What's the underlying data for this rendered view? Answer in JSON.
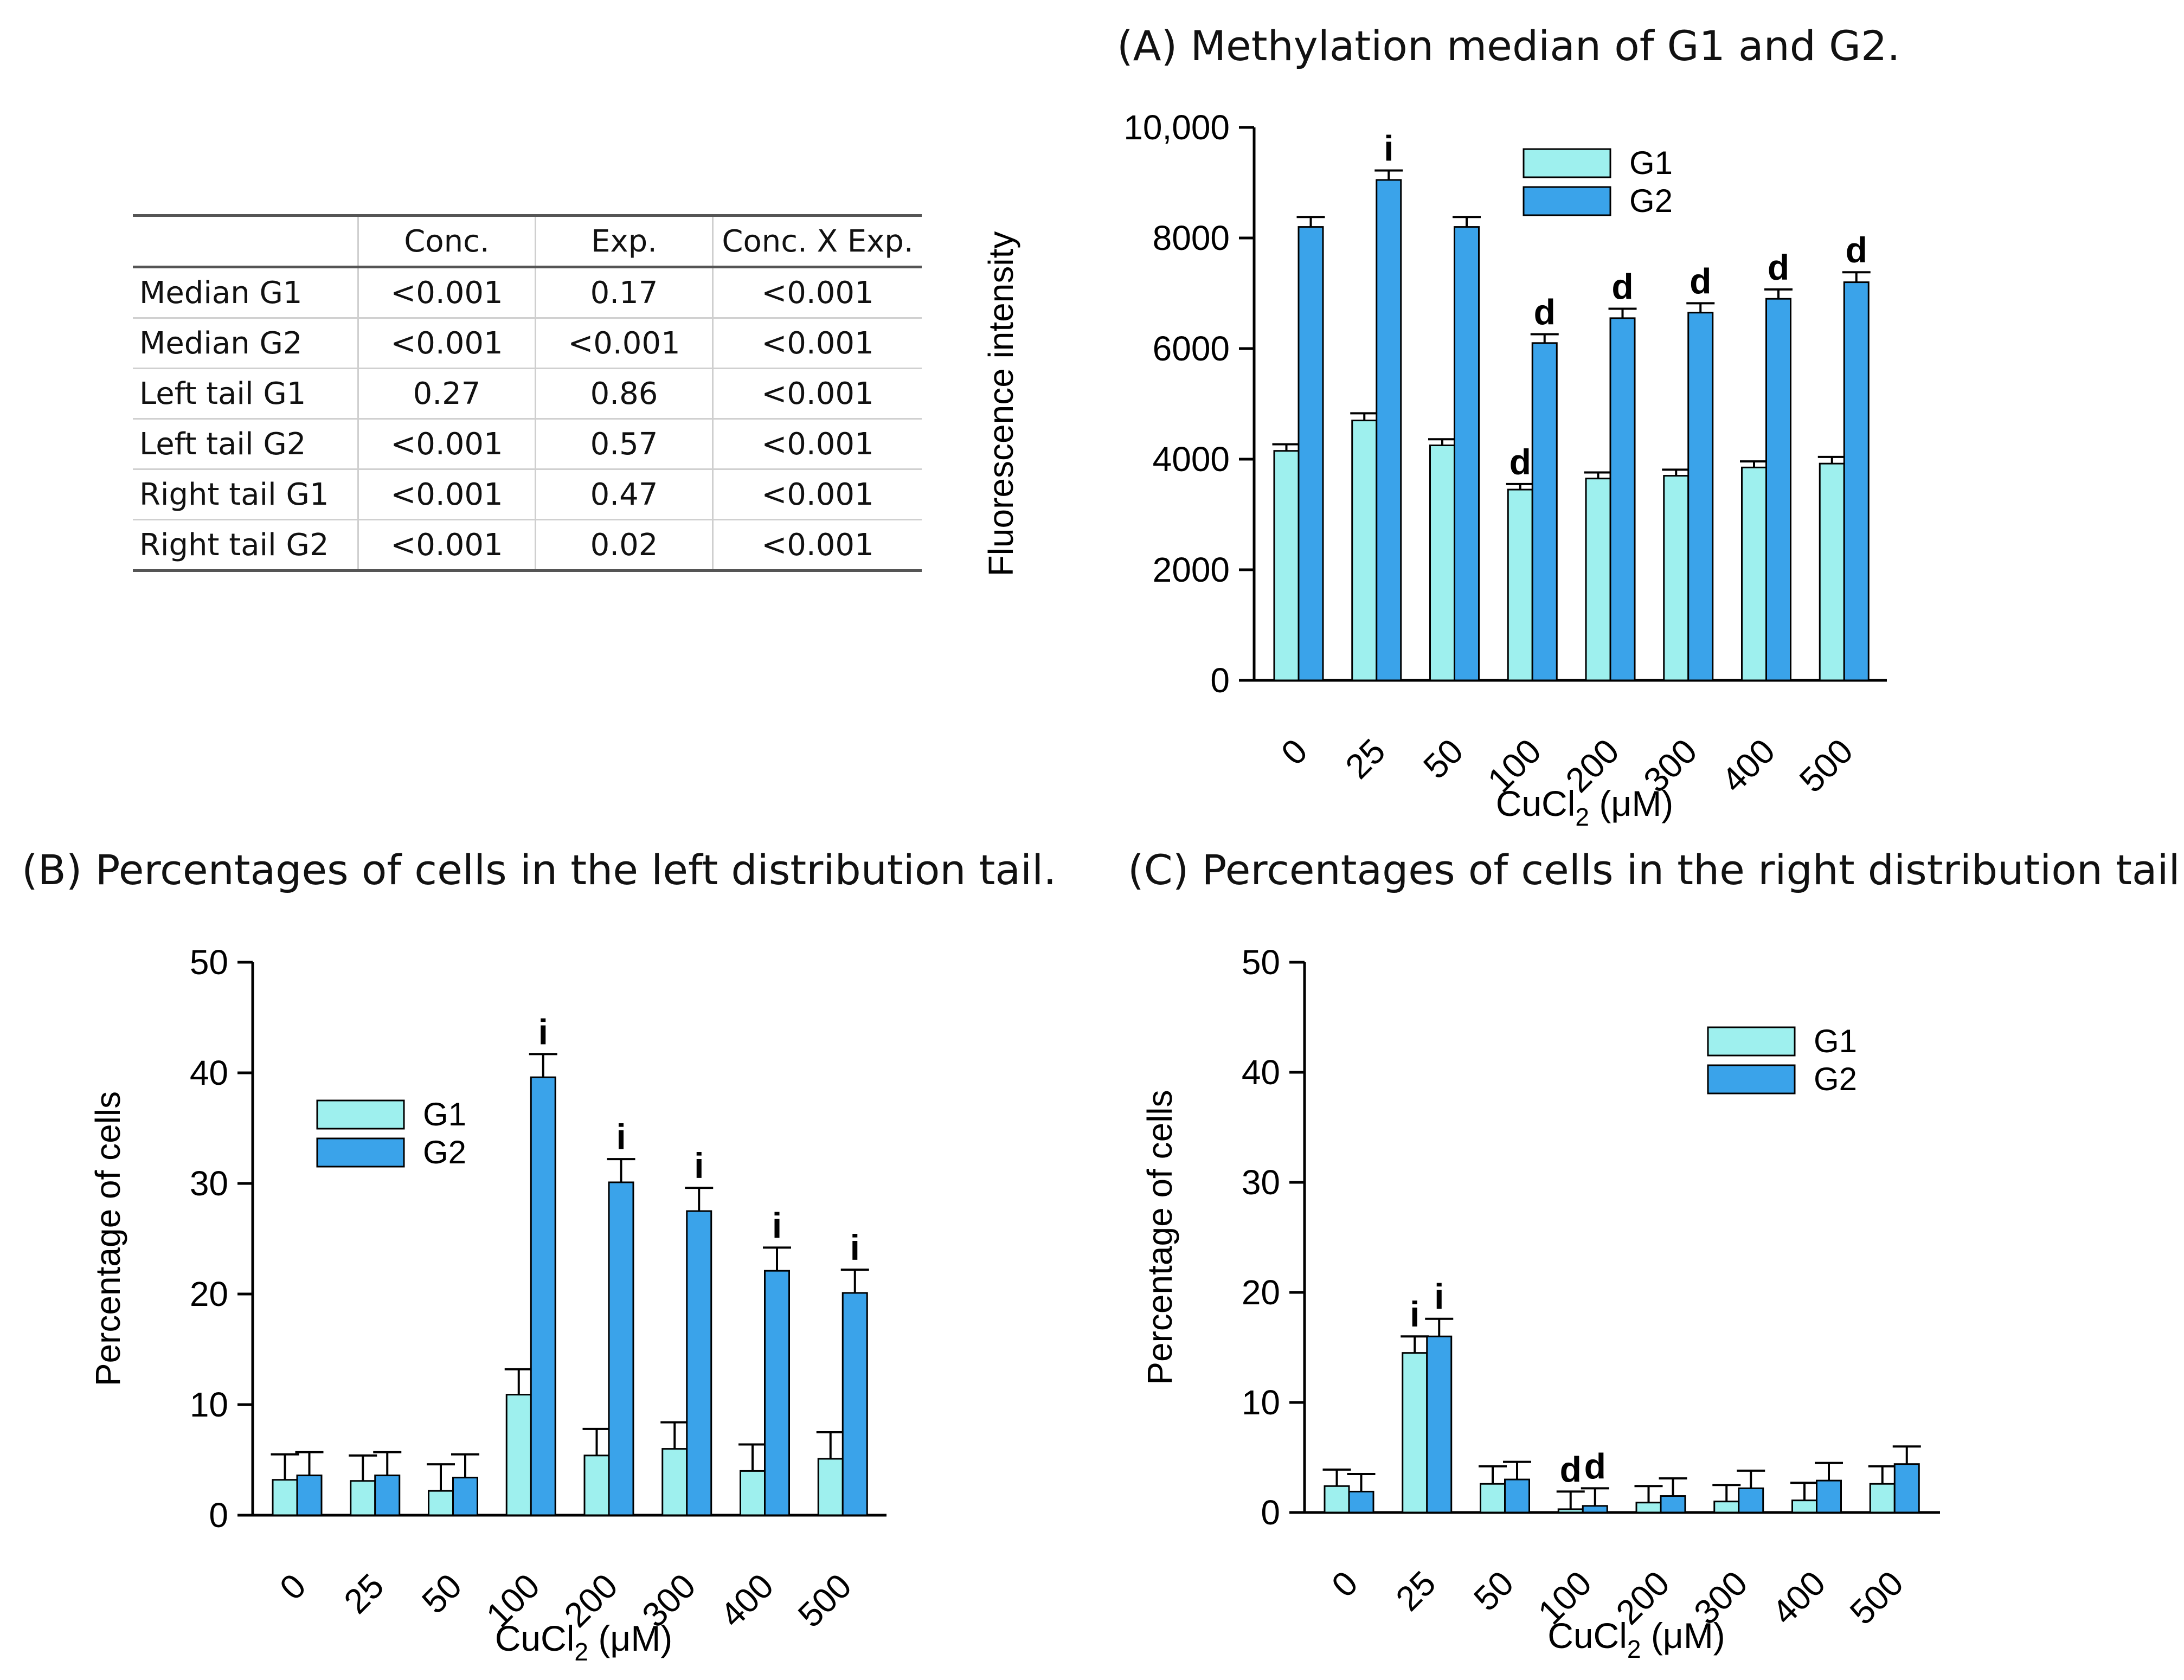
{
  "table": {
    "headers": [
      "",
      "Conc.",
      "Exp.",
      "Conc. X Exp."
    ],
    "rows": [
      [
        "Median G1",
        "<0.001",
        "0.17",
        "<0.001"
      ],
      [
        "Median G2",
        "<0.001",
        "<0.001",
        "<0.001"
      ],
      [
        "Left tail G1",
        "0.27",
        "0.86",
        "<0.001"
      ],
      [
        "Left tail G2",
        "<0.001",
        "0.57",
        "<0.001"
      ],
      [
        "Right tail G1",
        "<0.001",
        "0.47",
        "<0.001"
      ],
      [
        "Right tail G2",
        "<0.001",
        "0.02",
        "<0.001"
      ]
    ]
  },
  "colors": {
    "g1": "#9ef0ee",
    "g2": "#3aa3ea",
    "axis": "#000000"
  },
  "chart_data": [
    {
      "id": "A",
      "type": "bar",
      "title": "(A) Methylation median of G1 and G2.",
      "xlabel_main": "CuCl",
      "xlabel_sub": "2",
      "xlabel_unit": " (μM)",
      "ylabel": "Fluorescence intensity",
      "categories": [
        "0",
        "25",
        "50",
        "100",
        "200",
        "300",
        "400",
        "500"
      ],
      "ylim": [
        0,
        10000
      ],
      "yticks": [
        0,
        2000,
        4000,
        6000,
        8000,
        10000
      ],
      "ytick_labels": [
        "0",
        "2000",
        "4000",
        "6000",
        "8000",
        "10,000"
      ],
      "legend": "top-center",
      "series": [
        {
          "name": "G1",
          "values": [
            4150,
            4700,
            4250,
            3450,
            3650,
            3700,
            3850,
            3920
          ],
          "errors": [
            120,
            130,
            110,
            100,
            110,
            110,
            110,
            120
          ],
          "annotations": [
            "",
            "",
            "",
            "d",
            "",
            "",
            "",
            ""
          ]
        },
        {
          "name": "G2",
          "values": [
            8200,
            9050,
            8200,
            6100,
            6550,
            6650,
            6900,
            7200
          ],
          "errors": [
            180,
            170,
            180,
            160,
            170,
            170,
            170,
            180
          ],
          "annotations": [
            "",
            "i",
            "",
            "d",
            "d",
            "d",
            "d",
            "d"
          ]
        }
      ]
    },
    {
      "id": "B",
      "type": "bar",
      "title": "(B) Percentages of cells in the left distribution tail.",
      "xlabel_main": "CuCl",
      "xlabel_sub": "2",
      "xlabel_unit": " (μM)",
      "ylabel": "Percentage of cells",
      "categories": [
        "0",
        "25",
        "50",
        "100",
        "200",
        "300",
        "400",
        "500"
      ],
      "ylim": [
        0,
        50
      ],
      "yticks": [
        0,
        10,
        20,
        30,
        40,
        50
      ],
      "ytick_labels": [
        "0",
        "10",
        "20",
        "30",
        "40",
        "50"
      ],
      "legend": "top-left",
      "series": [
        {
          "name": "G1",
          "values": [
            3.2,
            3.1,
            2.2,
            10.9,
            5.4,
            6.0,
            4.0,
            5.1
          ],
          "errors": [
            2.3,
            2.3,
            2.4,
            2.3,
            2.4,
            2.4,
            2.4,
            2.4
          ],
          "annotations": [
            "",
            "",
            "",
            "",
            "",
            "",
            "",
            ""
          ]
        },
        {
          "name": "G2",
          "values": [
            3.6,
            3.6,
            3.4,
            39.6,
            30.1,
            27.5,
            22.1,
            20.1
          ],
          "errors": [
            2.1,
            2.1,
            2.1,
            2.1,
            2.1,
            2.1,
            2.1,
            2.1
          ],
          "annotations": [
            "",
            "",
            "",
            "i",
            "i",
            "i",
            "i",
            "i"
          ]
        }
      ]
    },
    {
      "id": "C",
      "type": "bar",
      "title": "(C) Percentages of cells in the right distribution tail.",
      "xlabel_main": "CuCl",
      "xlabel_sub": "2",
      "xlabel_unit": " (μM)",
      "ylabel": "Percentage of cells",
      "categories": [
        "0",
        "25",
        "50",
        "100",
        "200",
        "300",
        "400",
        "500"
      ],
      "ylim": [
        0,
        50
      ],
      "yticks": [
        0,
        10,
        20,
        30,
        40,
        50
      ],
      "ytick_labels": [
        "0",
        "10",
        "20",
        "30",
        "40",
        "50"
      ],
      "legend": "top-right",
      "series": [
        {
          "name": "G1",
          "values": [
            2.4,
            14.5,
            2.6,
            0.3,
            0.9,
            1.0,
            1.1,
            2.6
          ],
          "errors": [
            1.5,
            1.5,
            1.6,
            1.6,
            1.5,
            1.5,
            1.6,
            1.6
          ],
          "annotations": [
            "",
            "i",
            "",
            "d",
            "",
            "",
            "",
            ""
          ]
        },
        {
          "name": "G2",
          "values": [
            1.9,
            16.0,
            3.0,
            0.6,
            1.5,
            2.2,
            2.9,
            4.4
          ],
          "errors": [
            1.6,
            1.6,
            1.6,
            1.6,
            1.6,
            1.6,
            1.6,
            1.6
          ],
          "annotations": [
            "",
            "i",
            "",
            "d",
            "",
            "",
            "",
            ""
          ]
        }
      ]
    }
  ]
}
